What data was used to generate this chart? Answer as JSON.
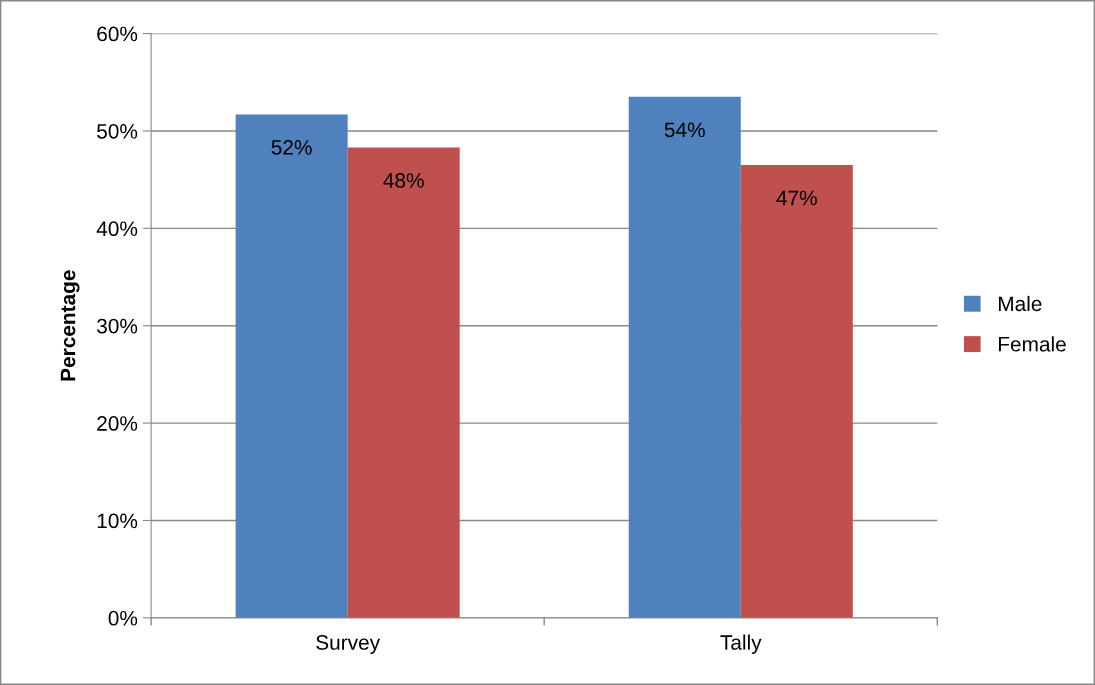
{
  "chart_data": {
    "type": "bar",
    "ylabel": "Percentage",
    "categories": [
      "Survey",
      "Tally"
    ],
    "series": [
      {
        "name": "Male",
        "color": "#4f81bd",
        "values": [
          51.7,
          53.5
        ],
        "value_labels": [
          "52%",
          "54%"
        ]
      },
      {
        "name": "Female",
        "color": "#c0504d",
        "values": [
          48.3,
          46.5
        ],
        "value_labels": [
          "48%",
          "47%"
        ]
      }
    ],
    "ylim": [
      0,
      60
    ],
    "yticks": [
      {
        "value": 0,
        "label": "0%"
      },
      {
        "value": 10,
        "label": "10%"
      },
      {
        "value": 20,
        "label": "20%"
      },
      {
        "value": 30,
        "label": "30%"
      },
      {
        "value": 40,
        "label": "40%"
      },
      {
        "value": 50,
        "label": "50%"
      },
      {
        "value": 60,
        "label": "60%"
      }
    ],
    "grid": "y",
    "legend": "right"
  }
}
